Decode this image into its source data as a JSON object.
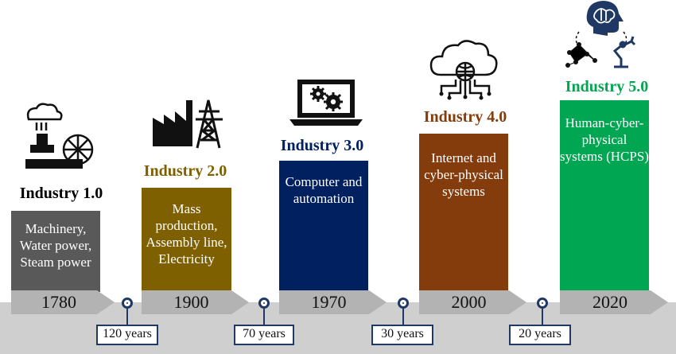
{
  "stages": [
    {
      "title": "Industry 1.0",
      "desc": [
        "Machinery,",
        "Water power,",
        "Steam power"
      ],
      "year": "1780",
      "color": "#595959",
      "title_color": "#595959",
      "icon": "steam-engine-icon"
    },
    {
      "title": "Industry 2.0",
      "desc": [
        "Mass",
        "production,",
        "Assembly line,",
        "Electricity"
      ],
      "year": "1900",
      "color": "#7f6000",
      "title_color": "#7f6000",
      "icon": "factory-power-line-icon"
    },
    {
      "title": "Industry 3.0",
      "desc": [
        "Computer and",
        "automation"
      ],
      "year": "1970",
      "color": "#002060",
      "title_color": "#002060",
      "icon": "laptop-gears-icon"
    },
    {
      "title": "Industry 4.0",
      "desc": [
        "Internet and",
        "cyber-physical",
        "systems"
      ],
      "year": "2000",
      "color": "#843c0c",
      "title_color": "#843c0c",
      "icon": "cloud-network-icon"
    },
    {
      "title": "Industry 5.0",
      "desc": [
        "Human-cyber-",
        "physical",
        "systems (HCPS)"
      ],
      "year": "2020",
      "color": "#00a651",
      "title_color": "#00a651",
      "icon": "human-ai-robot-icon"
    }
  ],
  "gaps": [
    "120 years",
    "70 years",
    "30 years",
    "20 years"
  ]
}
